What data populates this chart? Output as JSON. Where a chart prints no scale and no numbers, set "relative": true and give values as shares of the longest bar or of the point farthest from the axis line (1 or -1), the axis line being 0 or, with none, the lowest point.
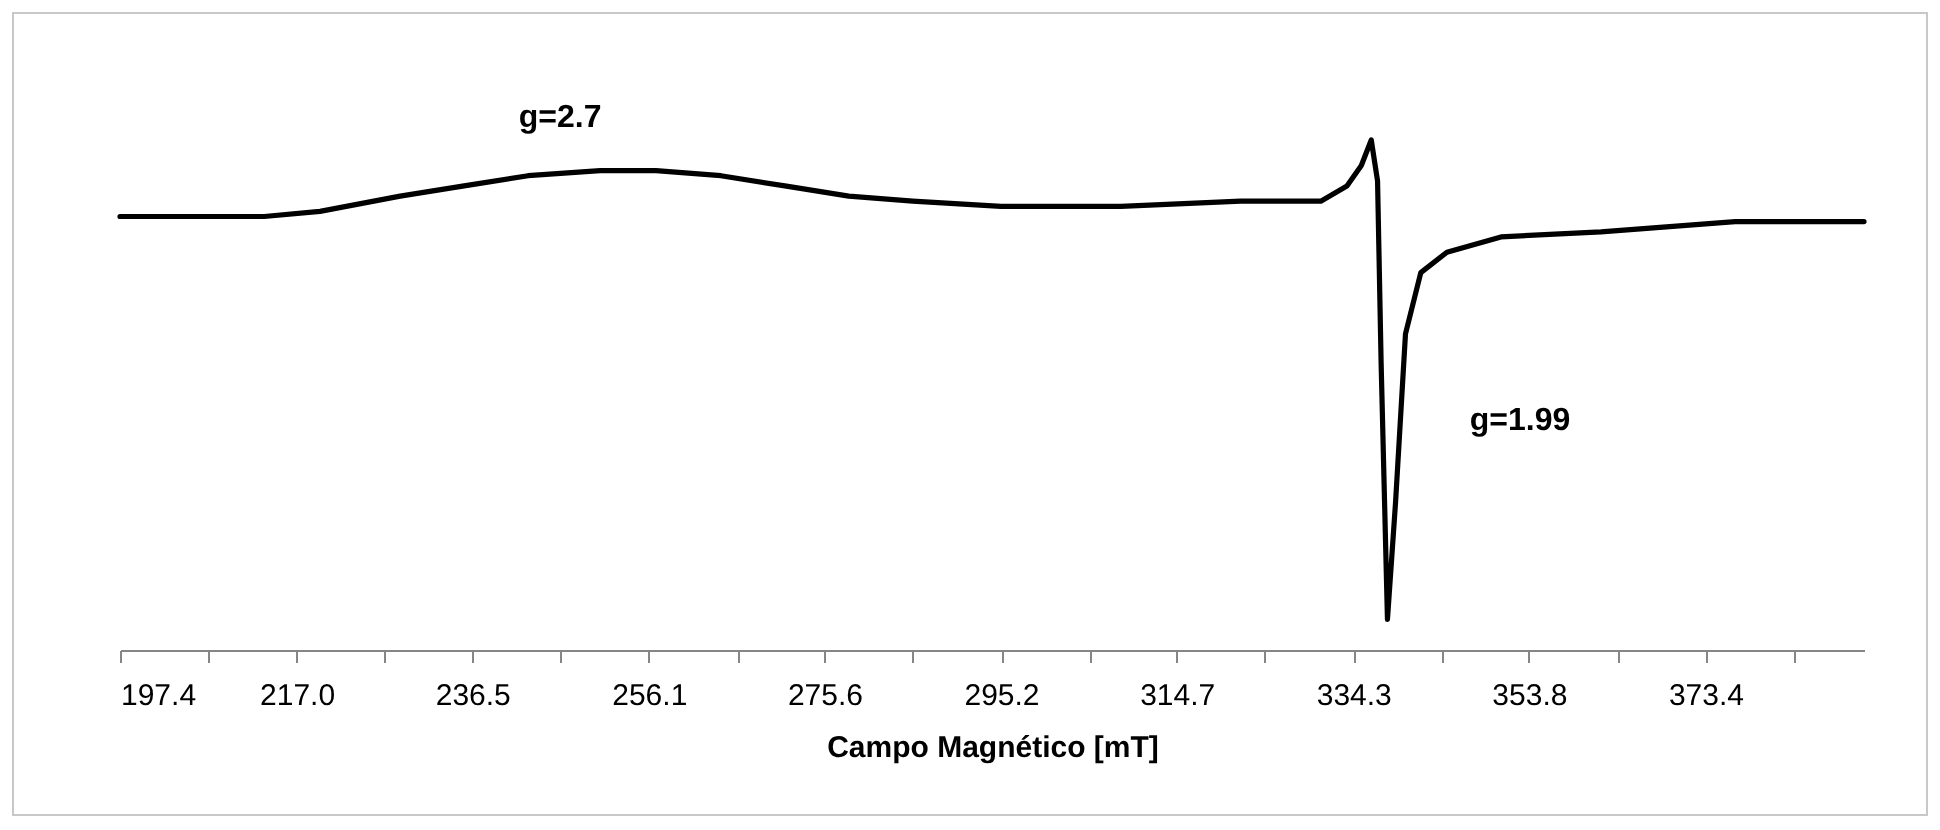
{
  "chart_data": {
    "type": "line",
    "xlabel": "Campo Magnético [mT]",
    "relative": true,
    "x": [
      197.4,
      213.4,
      219.6,
      228.5,
      235.6,
      242.7,
      250.7,
      256.9,
      264.1,
      271.2,
      278.3,
      285.4,
      295.2,
      308.5,
      321.8,
      330.7,
      333.6,
      335.2,
      336.3,
      337.0,
      337.4,
      338.1,
      339.0,
      340.1,
      341.8,
      344.7,
      350.7,
      361.8,
      376.7,
      391.0
    ],
    "series": [
      {
        "color": "#000000",
        "values": [
          0.85,
          0.85,
          0.86,
          0.89,
          0.91,
          0.93,
          0.94,
          0.94,
          0.93,
          0.91,
          0.89,
          0.88,
          0.87,
          0.87,
          0.88,
          0.88,
          0.91,
          0.95,
          1.0,
          0.92,
          0.56,
          0.06,
          0.29,
          0.62,
          0.74,
          0.78,
          0.81,
          0.82,
          0.84,
          0.84
        ]
      }
    ],
    "xlim": [
      197.4,
      391.0
    ],
    "xticks": [
      197.4,
      {
        "value": 207.2,
        "label": null
      },
      {
        "value": 217.0,
        "label": "217.0"
      },
      {
        "value": 226.8,
        "label": null
      },
      236.5,
      {
        "value": 246.3,
        "label": null
      },
      256.1,
      {
        "value": 265.9,
        "label": null
      },
      275.6,
      {
        "value": 285.4,
        "label": null
      },
      295.2,
      {
        "value": 305.0,
        "label": null
      },
      314.7,
      {
        "value": 324.5,
        "label": null
      },
      334.3,
      {
        "value": 344.1,
        "label": null
      },
      353.8,
      {
        "value": 363.6,
        "label": null
      },
      373.4,
      {
        "value": 383.2,
        "label": null
      }
    ],
    "annotations": [
      {
        "text": "g=2.7",
        "x": 250.7,
        "y": 0.94
      },
      "g=1.99"
    ]
  }
}
